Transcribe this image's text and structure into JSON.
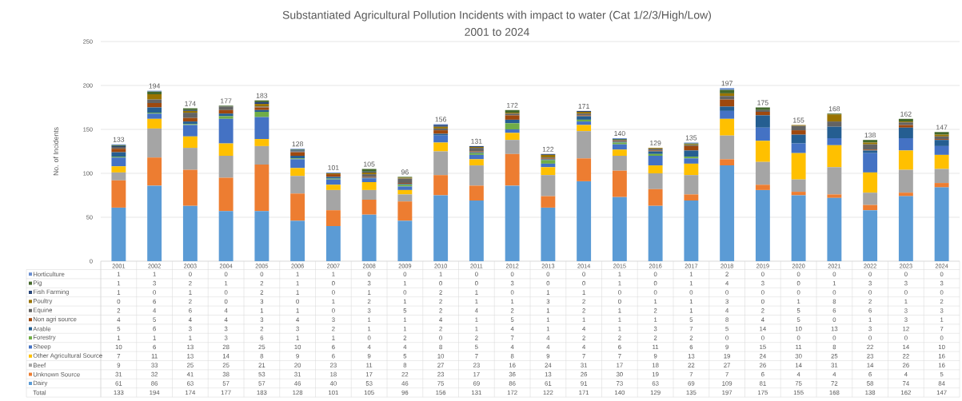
{
  "chart_data": {
    "type": "bar",
    "stacked": true,
    "title": "Substantiated Agricultural Pollution Incidents with impact to water (Cat 1/2/3/High/Low)",
    "subtitle": "2001 to 2024",
    "ylabel": "No. of Incidents",
    "categories": [
      "2001",
      "2002",
      "2003",
      "2004",
      "2005",
      "2006",
      "2007",
      "2008",
      "2009",
      "2010",
      "2011",
      "2012",
      "2013",
      "2014",
      "2015",
      "2016",
      "2017",
      "2018",
      "2019",
      "2020",
      "2021",
      "2022",
      "2023",
      "2024"
    ],
    "series": [
      {
        "name": "Dairy",
        "color": "#5b9bd5",
        "values": [
          61,
          86,
          63,
          57,
          57,
          46,
          40,
          53,
          46,
          75,
          69,
          86,
          61,
          91,
          73,
          63,
          69,
          109,
          81,
          75,
          72,
          58,
          74,
          84
        ]
      },
      {
        "name": "Unknown Source",
        "color": "#ed7d31",
        "values": [
          31,
          32,
          41,
          38,
          53,
          31,
          18,
          17,
          22,
          23,
          17,
          36,
          13,
          26,
          30,
          19,
          7,
          7,
          6,
          4,
          4,
          6,
          4,
          5
        ]
      },
      {
        "name": "Beef",
        "color": "#a5a5a5",
        "values": [
          9,
          33,
          25,
          25,
          21,
          20,
          23,
          11,
          8,
          27,
          23,
          16,
          24,
          31,
          17,
          18,
          22,
          27,
          26,
          14,
          31,
          14,
          26,
          16
        ]
      },
      {
        "name": "Other Agricultural Source",
        "color": "#ffc000",
        "values": [
          7,
          11,
          13,
          14,
          8,
          9,
          6,
          9,
          5,
          10,
          7,
          8,
          9,
          7,
          7,
          9,
          13,
          19,
          24,
          30,
          25,
          23,
          22,
          16
        ]
      },
      {
        "name": "Sheep",
        "color": "#4472c4",
        "values": [
          10,
          6,
          13,
          28,
          25,
          10,
          6,
          4,
          4,
          8,
          5,
          4,
          4,
          4,
          6,
          11,
          6,
          9,
          15,
          11,
          8,
          22,
          14,
          10
        ]
      },
      {
        "name": "Forestry",
        "color": "#70ad47",
        "values": [
          1,
          1,
          1,
          3,
          6,
          1,
          1,
          0,
          2,
          0,
          2,
          7,
          4,
          2,
          2,
          2,
          2,
          0,
          0,
          0,
          0,
          0,
          0,
          0
        ]
      },
      {
        "name": "Arable",
        "color": "#255e91",
        "values": [
          5,
          6,
          3,
          3,
          2,
          3,
          2,
          1,
          1,
          2,
          1,
          4,
          1,
          4,
          1,
          3,
          7,
          5,
          14,
          10,
          13,
          3,
          12,
          7
        ]
      },
      {
        "name": "Non agri source",
        "color": "#9e480e",
        "values": [
          4,
          5,
          4,
          4,
          3,
          4,
          3,
          1,
          1,
          4,
          1,
          5,
          1,
          1,
          1,
          1,
          5,
          8,
          4,
          5,
          0,
          1,
          3,
          1
        ]
      },
      {
        "name": "Equine",
        "color": "#636363",
        "values": [
          2,
          4,
          6,
          4,
          1,
          1,
          0,
          3,
          5,
          2,
          4,
          2,
          1,
          2,
          1,
          2,
          1,
          4,
          2,
          5,
          6,
          6,
          3,
          3
        ]
      },
      {
        "name": "Poultry",
        "color": "#997300",
        "values": [
          0,
          6,
          2,
          0,
          3,
          0,
          1,
          2,
          1,
          2,
          1,
          1,
          3,
          2,
          0,
          1,
          1,
          3,
          0,
          1,
          8,
          2,
          1,
          2
        ]
      },
      {
        "name": "Fish Farming",
        "color": "#264478",
        "values": [
          1,
          0,
          1,
          0,
          2,
          1,
          0,
          1,
          0,
          2,
          1,
          0,
          1,
          1,
          0,
          0,
          0,
          0,
          0,
          0,
          0,
          0,
          0,
          0
        ]
      },
      {
        "name": "Pig",
        "color": "#43682b",
        "values": [
          1,
          3,
          2,
          1,
          2,
          1,
          0,
          3,
          1,
          0,
          0,
          3,
          0,
          0,
          1,
          0,
          1,
          4,
          3,
          0,
          1,
          3,
          3,
          3
        ]
      },
      {
        "name": "Horticulture",
        "color": "#698ed0",
        "values": [
          1,
          1,
          0,
          0,
          0,
          1,
          1,
          0,
          0,
          1,
          0,
          0,
          0,
          0,
          1,
          0,
          1,
          2,
          0,
          0,
          0,
          0,
          0,
          0
        ]
      }
    ],
    "totals": [
      "133",
      "194",
      "174",
      "177",
      "183",
      "128",
      "101",
      "105",
      "96",
      "156",
      "131",
      "172",
      "122",
      "171",
      "140",
      "129",
      "135",
      "197",
      "175",
      "155",
      "168",
      "138",
      "162",
      "147"
    ],
    "annotations": [
      "Total"
    ],
    "ylim": [
      0,
      250
    ],
    "yticks": [
      0,
      50,
      100,
      150,
      200,
      250
    ],
    "grid": "y",
    "legend": "bottom",
    "data_labels": true
  }
}
